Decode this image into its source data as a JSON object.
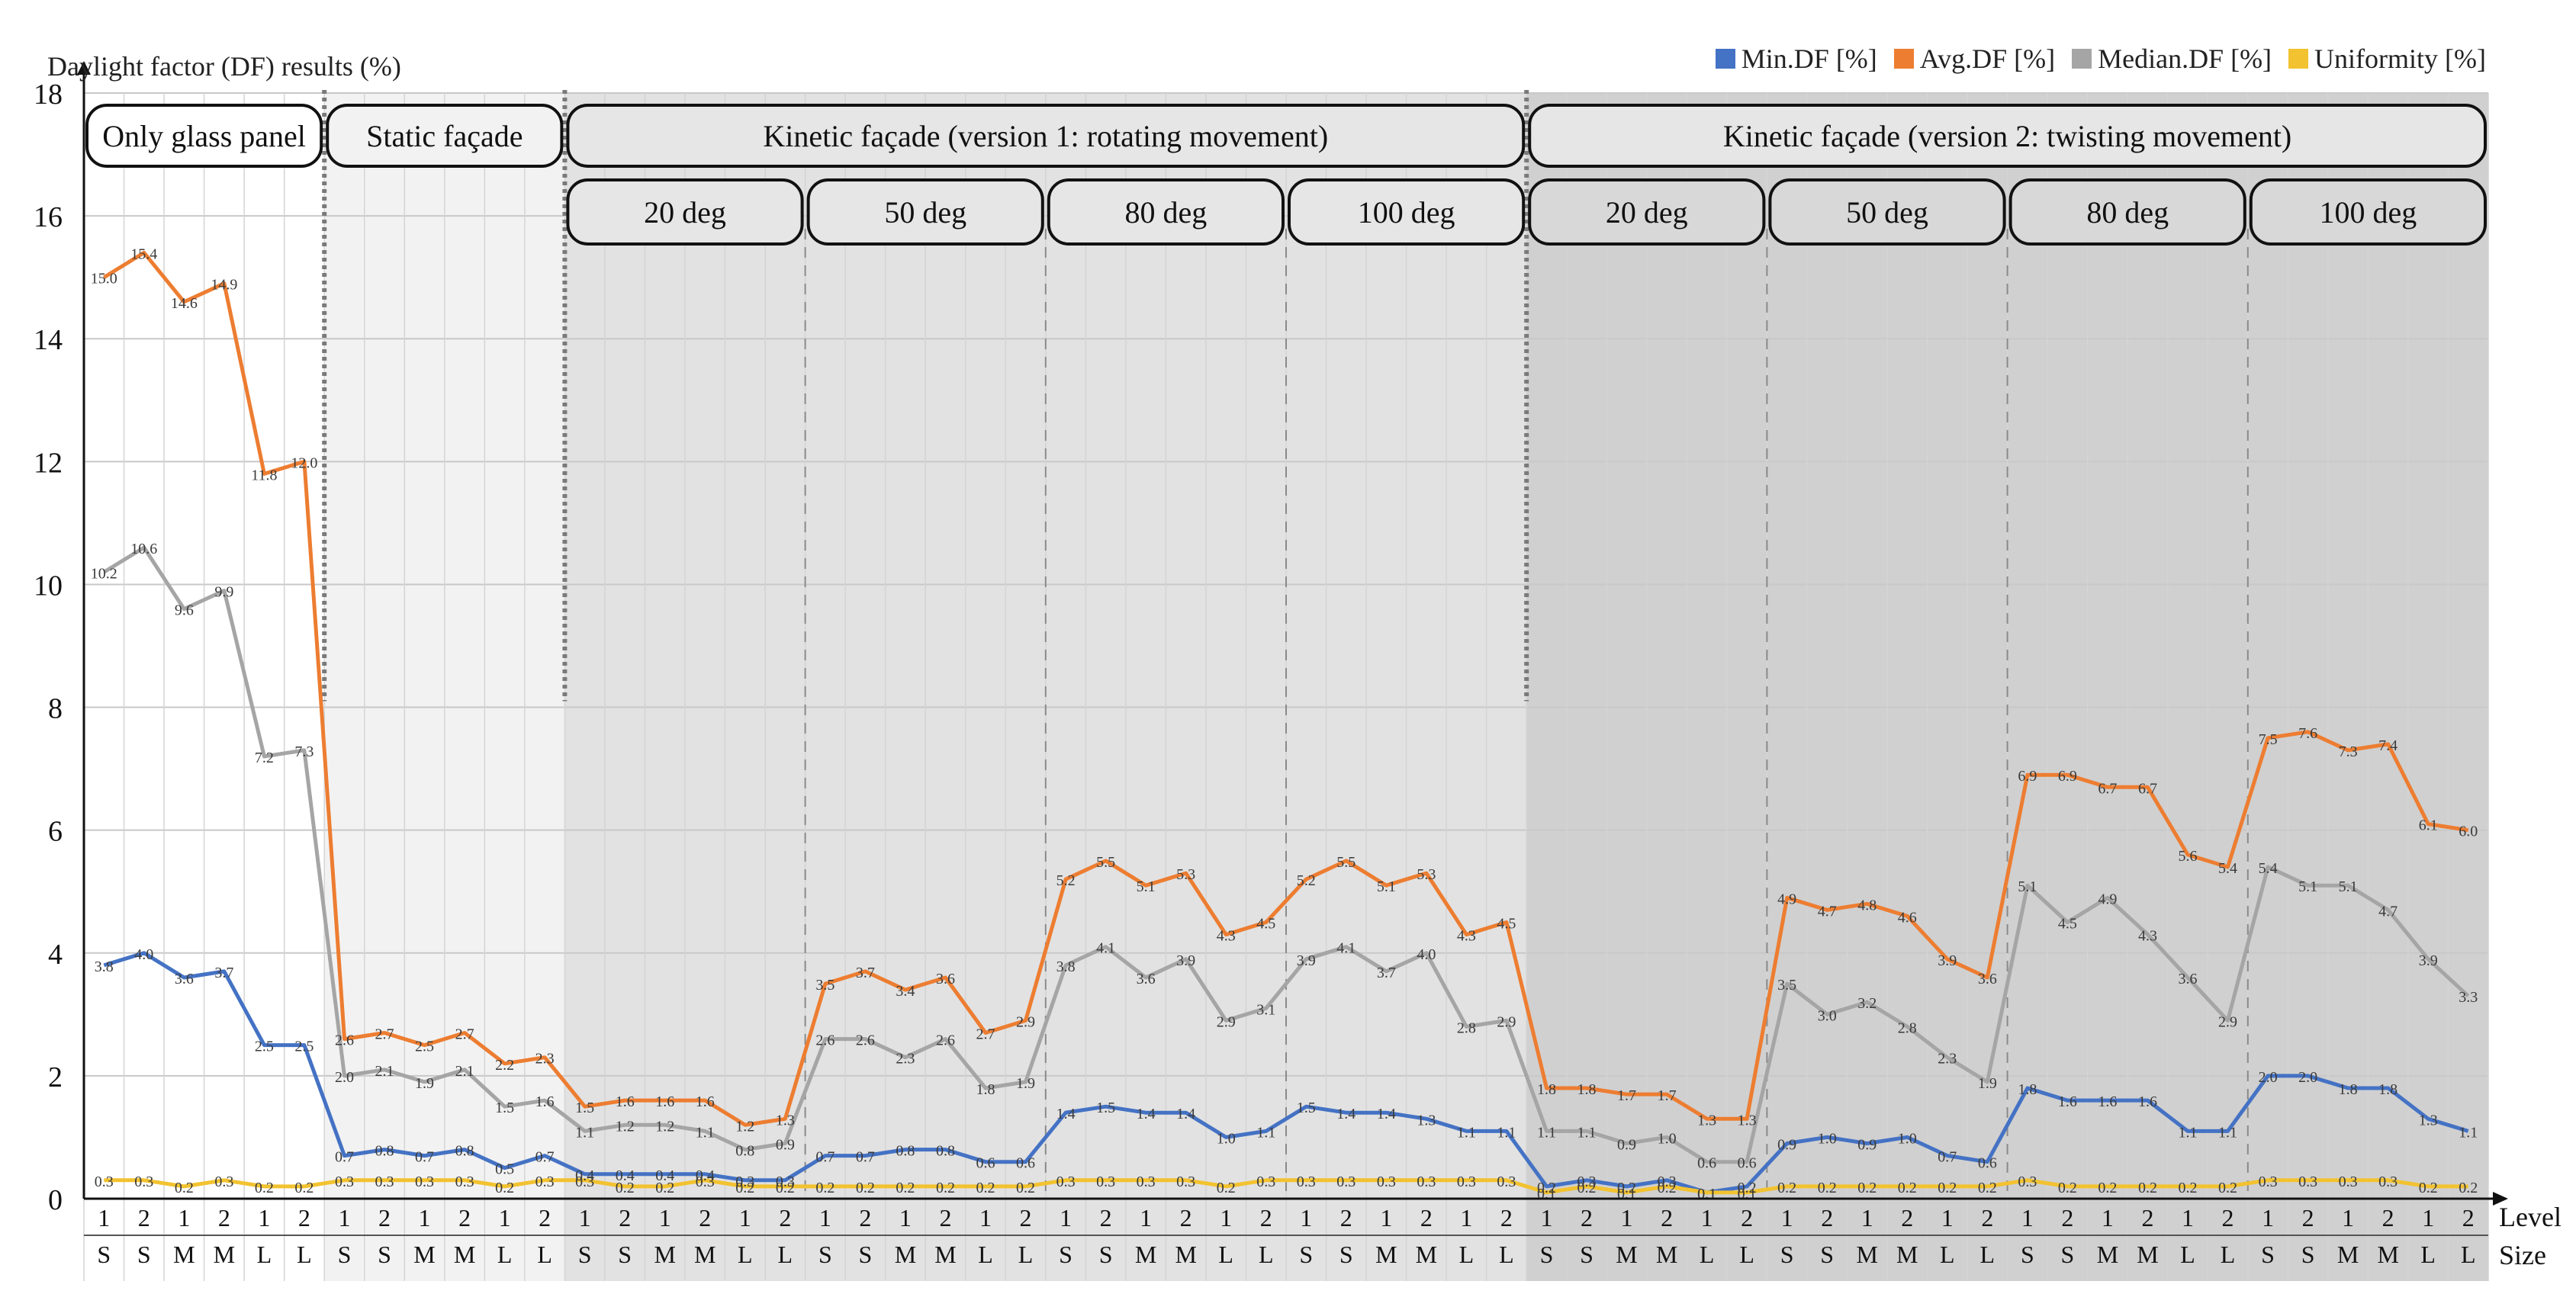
{
  "chart_data": {
    "type": "line",
    "ylabel": "Daylight factor (DF) results (%)",
    "xlabel_level": "Level",
    "xlabel_size": "Size",
    "ylim": [
      0,
      18
    ],
    "yticks": [
      0,
      2,
      4,
      6,
      8,
      10,
      12,
      14,
      16,
      18
    ],
    "grid": true,
    "legend_position": "top-right",
    "levels": [
      "1",
      "2",
      "1",
      "2",
      "1",
      "2",
      "1",
      "2",
      "1",
      "2",
      "1",
      "2",
      "1",
      "2",
      "1",
      "2",
      "1",
      "2",
      "1",
      "2",
      "1",
      "2",
      "1",
      "2",
      "1",
      "2",
      "1",
      "2",
      "1",
      "2",
      "1",
      "2",
      "1",
      "2",
      "1",
      "2",
      "1",
      "2",
      "1",
      "2",
      "1",
      "2",
      "1",
      "2",
      "1",
      "2",
      "1",
      "2",
      "1",
      "2",
      "1",
      "2",
      "1",
      "2",
      "1",
      "2",
      "1",
      "2",
      "1",
      "2"
    ],
    "sizes": [
      "S",
      "S",
      "M",
      "M",
      "L",
      "L",
      "S",
      "S",
      "M",
      "M",
      "L",
      "L",
      "S",
      "S",
      "M",
      "M",
      "L",
      "L",
      "S",
      "S",
      "M",
      "M",
      "L",
      "L",
      "S",
      "S",
      "M",
      "M",
      "L",
      "L",
      "S",
      "S",
      "M",
      "M",
      "L",
      "L",
      "S",
      "S",
      "M",
      "M",
      "L",
      "L",
      "S",
      "S",
      "M",
      "M",
      "L",
      "L",
      "S",
      "S",
      "M",
      "M",
      "L",
      "L",
      "S",
      "S",
      "M",
      "M",
      "L",
      "L"
    ],
    "series": [
      {
        "name": "Min.DF [%]",
        "color": "#4472C4",
        "values": [
          3.8,
          4.0,
          3.6,
          3.7,
          2.5,
          2.5,
          0.7,
          0.8,
          0.7,
          0.8,
          0.5,
          0.7,
          0.4,
          0.4,
          0.4,
          0.4,
          0.3,
          0.3,
          0.7,
          0.7,
          0.8,
          0.8,
          0.6,
          0.6,
          1.4,
          1.5,
          1.4,
          1.4,
          1.0,
          1.1,
          1.5,
          1.4,
          1.4,
          1.3,
          1.1,
          1.1,
          0.2,
          0.3,
          0.2,
          0.3,
          0.1,
          0.2,
          0.9,
          1.0,
          0.9,
          1.0,
          0.7,
          0.6,
          1.8,
          1.6,
          1.6,
          1.6,
          1.1,
          1.1,
          2.0,
          2.0,
          1.8,
          1.8,
          1.3,
          1.1
        ],
        "labels": [
          "3.8",
          "4.0",
          "3.6",
          "3.7",
          "2.5",
          "2.5",
          "0.7",
          "0.8",
          "0.7",
          "0.8",
          "0.5",
          "0.7",
          "0.4",
          "0.4",
          "0.4",
          "0.4",
          "0.3",
          "0.3",
          "0.7",
          "0.7",
          "0.8",
          "0.8",
          "0.6",
          "0.6",
          "1.4",
          "1.5",
          "1.4",
          "1.4",
          "1.0",
          "1.1",
          "1.5",
          "1.4",
          "1.4",
          "1.3",
          "1.1",
          "1.1",
          "0.2",
          "0.3",
          "0.2",
          "0.3",
          "0.1",
          "0.2",
          "0.9",
          "1.0",
          "0.9",
          "1.0",
          "0.7",
          "0.6",
          "1.8",
          "1.6",
          "1.6",
          "1.6",
          "1.1",
          "1.1",
          "2.0",
          "2.0",
          "1.8",
          "1.8",
          "1.3",
          "1.1"
        ]
      },
      {
        "name": "Avg.DF [%]",
        "color": "#ED7D31",
        "values": [
          15.0,
          15.4,
          14.6,
          14.9,
          11.8,
          12.0,
          2.6,
          2.7,
          2.5,
          2.7,
          2.2,
          2.3,
          1.5,
          1.6,
          1.6,
          1.6,
          1.2,
          1.3,
          3.5,
          3.7,
          3.4,
          3.6,
          2.7,
          2.9,
          5.2,
          5.5,
          5.1,
          5.3,
          4.3,
          4.5,
          5.2,
          5.5,
          5.1,
          5.3,
          4.3,
          4.5,
          1.8,
          1.8,
          1.7,
          1.7,
          1.3,
          1.3,
          4.9,
          4.7,
          4.8,
          4.6,
          3.9,
          3.6,
          6.9,
          6.9,
          6.7,
          6.7,
          5.6,
          5.4,
          7.5,
          7.6,
          7.3,
          7.4,
          6.1,
          6.0
        ],
        "labels": [
          "15.0",
          "15.4",
          "14.6",
          "14.9",
          "11.8",
          "12.0",
          "2.6",
          "2.7",
          "2.5",
          "2.7",
          "2.2",
          "2.3",
          "1.5",
          "1.6",
          "1.6",
          "1.6",
          "1.2",
          "1.3",
          "3.5",
          "3.7",
          "3.4",
          "3.6",
          "2.7",
          "2.9",
          "5.2",
          "5.5",
          "5.1",
          "5.3",
          "4.3",
          "4.5",
          "5.2",
          "5.5",
          "5.1",
          "5.3",
          "4.3",
          "4.5",
          "1.8",
          "1.8",
          "1.7",
          "1.7",
          "1.3",
          "1.3",
          "4.9",
          "4.7",
          "4.8",
          "4.6",
          "3.9",
          "3.6",
          "6.9",
          "6.9",
          "6.7",
          "6.7",
          "5.6",
          "5.4",
          "7.5",
          "7.6",
          "7.3",
          "7.4",
          "6.1",
          "6.0"
        ]
      },
      {
        "name": "Median.DF [%]",
        "color": "#A5A5A5",
        "values": [
          10.2,
          10.6,
          9.6,
          9.9,
          7.2,
          7.3,
          2.0,
          2.1,
          1.9,
          2.1,
          1.5,
          1.6,
          1.1,
          1.2,
          1.2,
          1.1,
          0.8,
          0.9,
          2.6,
          2.6,
          2.3,
          2.6,
          1.8,
          1.9,
          3.8,
          4.1,
          3.6,
          3.9,
          2.9,
          3.1,
          3.9,
          4.1,
          3.7,
          4.0,
          2.8,
          2.9,
          1.1,
          1.1,
          0.9,
          1.0,
          0.6,
          0.6,
          3.5,
          3.0,
          3.2,
          2.8,
          2.3,
          1.9,
          5.1,
          4.5,
          4.9,
          4.3,
          3.6,
          2.9,
          5.4,
          5.1,
          5.1,
          4.7,
          3.9,
          3.3
        ],
        "labels": [
          "10.2",
          "10.6",
          "9.6",
          "9.9",
          "7.2",
          "7.3",
          "2.0",
          "2.1",
          "1.9",
          "2.1",
          "1.5",
          "1.6",
          "1.1",
          "1.2",
          "1.2",
          "1.1",
          "0.8",
          "0.9",
          "2.6",
          "2.6",
          "2.3",
          "2.6",
          "1.8",
          "1.9",
          "3.8",
          "4.1",
          "3.6",
          "3.9",
          "2.9",
          "3.1",
          "3.9",
          "4.1",
          "3.7",
          "4.0",
          "2.8",
          "2.9",
          "1.1",
          "1.1",
          "0.9",
          "1.0",
          "0.6",
          "0.6",
          "3.5",
          "3.0",
          "3.2",
          "2.8",
          "2.3",
          "1.9",
          "5.1",
          "4.5",
          "4.9",
          "4.3",
          "3.6",
          "2.9",
          "5.4",
          "5.1",
          "5.1",
          "4.7",
          "3.9",
          "3.3"
        ]
      },
      {
        "name": "Uniformity [%]",
        "color": "#F2C230",
        "values": [
          0.3,
          0.3,
          0.2,
          0.3,
          0.2,
          0.2,
          0.3,
          0.3,
          0.3,
          0.3,
          0.2,
          0.3,
          0.3,
          0.2,
          0.2,
          0.3,
          0.2,
          0.2,
          0.2,
          0.2,
          0.2,
          0.2,
          0.2,
          0.2,
          0.3,
          0.3,
          0.3,
          0.3,
          0.2,
          0.3,
          0.3,
          0.3,
          0.3,
          0.3,
          0.3,
          0.3,
          0.1,
          0.2,
          0.1,
          0.2,
          0.1,
          0.1,
          0.2,
          0.2,
          0.2,
          0.2,
          0.2,
          0.2,
          0.3,
          0.2,
          0.2,
          0.2,
          0.2,
          0.2,
          0.3,
          0.3,
          0.3,
          0.3,
          0.2,
          0.2
        ],
        "labels": [
          "0.3",
          "0.3",
          "0.2",
          "0.3",
          "0.2",
          "0.2",
          "0.3",
          "0.3",
          "0.3",
          "0.3",
          "0.2",
          "0.3",
          "0.3",
          "0.2",
          "0.2",
          "0.3",
          "0.2",
          "0.2",
          "0.2",
          "0.2",
          "0.2",
          "0.2",
          "0.2",
          "0.2",
          "0.3",
          "0.3",
          "0.3",
          "0.3",
          "0.2",
          "0.3",
          "0.3",
          "0.3",
          "0.3",
          "0.3",
          "0.3",
          "0.3",
          "0.1",
          "0.2",
          "0.1",
          "0.2",
          "0.1",
          "0.1",
          "0.2",
          "0.2",
          "0.2",
          "0.2",
          "0.2",
          "0.2",
          "0.3",
          "0.2",
          "0.2",
          "0.2",
          "0.2",
          "0.2",
          "0.3",
          "0.3",
          "0.3",
          "0.3",
          "0.2",
          "0.2"
        ]
      }
    ],
    "group_headers": [
      {
        "label": "Only glass panel",
        "start": 0,
        "end": 5
      },
      {
        "label": "Static façade",
        "start": 6,
        "end": 11
      },
      {
        "label": "Kinetic façade (version 1: rotating movement)",
        "start": 12,
        "end": 35
      },
      {
        "label": "Kinetic façade (version 2: twisting movement)",
        "start": 36,
        "end": 59
      }
    ],
    "sub_headers": [
      {
        "label": "20 deg",
        "start": 12,
        "end": 17
      },
      {
        "label": "50 deg",
        "start": 18,
        "end": 23
      },
      {
        "label": "80 deg",
        "start": 24,
        "end": 29
      },
      {
        "label": "100 deg",
        "start": 30,
        "end": 35
      },
      {
        "label": "20 deg",
        "start": 36,
        "end": 41
      },
      {
        "label": "50 deg",
        "start": 42,
        "end": 47
      },
      {
        "label": "80 deg",
        "start": 48,
        "end": 53
      },
      {
        "label": "100 deg",
        "start": 54,
        "end": 59
      }
    ],
    "region_colors": [
      "#ffffff",
      "#f2f2f2",
      "#e2e2e2",
      "#d0d0d0"
    ]
  }
}
